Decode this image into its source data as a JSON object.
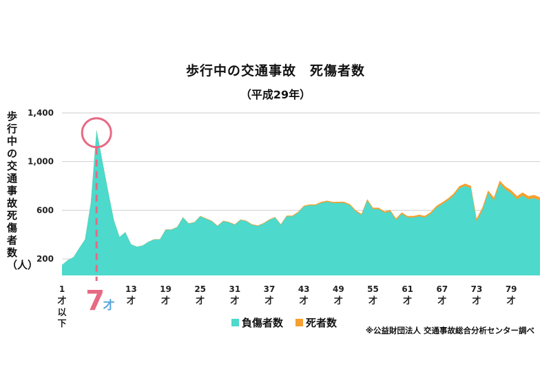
{
  "title": "歩行中の交通事故　死傷者数",
  "subtitle": "（平成29年）",
  "source": "※公益財団法人 交通事故総合分析センター調べ",
  "chart_data": {
    "type": "area",
    "ylabel": "歩行中の交通事故死傷者数（人）",
    "ylim": [
      0,
      1400
    ],
    "y_ticks": [
      200,
      600,
      1000,
      1400
    ],
    "y_tick_labels": [
      "200",
      "600",
      "1,000",
      "1,400"
    ],
    "x_ticks": [
      {
        "age": 1,
        "label": "1",
        "suffix": "才",
        "extra": "以下"
      },
      {
        "age": 13,
        "label": "13",
        "suffix": "才"
      },
      {
        "age": 19,
        "label": "19",
        "suffix": "才"
      },
      {
        "age": 25,
        "label": "25",
        "suffix": "才"
      },
      {
        "age": 31,
        "label": "31",
        "suffix": "才"
      },
      {
        "age": 37,
        "label": "37",
        "suffix": "才"
      },
      {
        "age": 43,
        "label": "43",
        "suffix": "才"
      },
      {
        "age": 49,
        "label": "49",
        "suffix": "才"
      },
      {
        "age": 55,
        "label": "55",
        "suffix": "才"
      },
      {
        "age": 61,
        "label": "61",
        "suffix": "才"
      },
      {
        "age": 67,
        "label": "67",
        "suffix": "才"
      },
      {
        "age": 73,
        "label": "73",
        "suffix": "才"
      },
      {
        "age": 79,
        "label": "79",
        "suffix": "才"
      }
    ],
    "highlight": {
      "age": 7,
      "number": "7",
      "suffix": "才"
    },
    "legend": [
      {
        "name": "負傷者数",
        "color": "#4dd9cc"
      },
      {
        "name": "死者数",
        "color": "#f5a030"
      }
    ],
    "x_ages": [
      1,
      2,
      3,
      4,
      5,
      6,
      7,
      8,
      9,
      10,
      11,
      12,
      13,
      14,
      15,
      16,
      17,
      18,
      19,
      20,
      21,
      22,
      23,
      24,
      25,
      26,
      27,
      28,
      29,
      30,
      31,
      32,
      33,
      34,
      35,
      36,
      37,
      38,
      39,
      40,
      41,
      42,
      43,
      44,
      45,
      46,
      47,
      48,
      49,
      50,
      51,
      52,
      53,
      54,
      55,
      56,
      57,
      58,
      59,
      60,
      61,
      62,
      63,
      64,
      65,
      66,
      67,
      68,
      69,
      70,
      71,
      72,
      73,
      74,
      75,
      76,
      77,
      78,
      79,
      80,
      81,
      82,
      83,
      84
    ],
    "series": [
      {
        "name": "負傷者数",
        "values": [
          150,
          190,
          215,
          290,
          360,
          660,
          1260,
          1010,
          760,
          520,
          380,
          420,
          320,
          300,
          310,
          340,
          360,
          360,
          440,
          440,
          460,
          540,
          490,
          500,
          550,
          530,
          510,
          470,
          510,
          500,
          480,
          520,
          510,
          480,
          470,
          490,
          520,
          540,
          480,
          550,
          550,
          580,
          630,
          640,
          640,
          660,
          670,
          660,
          660,
          660,
          640,
          590,
          560,
          680,
          610,
          610,
          580,
          590,
          520,
          570,
          540,
          540,
          550,
          540,
          570,
          620,
          650,
          680,
          720,
          780,
          800,
          780,
          510,
          600,
          740,
          680,
          820,
          770,
          740,
          690,
          720,
          690,
          700,
          680
        ]
      },
      {
        "name": "死者数",
        "values": [
          0,
          0,
          0,
          0,
          1,
          1,
          2,
          2,
          2,
          1,
          1,
          1,
          1,
          1,
          1,
          1,
          2,
          2,
          3,
          3,
          3,
          3,
          3,
          3,
          4,
          4,
          4,
          4,
          4,
          4,
          4,
          4,
          4,
          5,
          5,
          5,
          5,
          5,
          5,
          6,
          6,
          7,
          7,
          8,
          8,
          9,
          9,
          9,
          10,
          10,
          10,
          10,
          10,
          11,
          11,
          11,
          11,
          12,
          12,
          12,
          12,
          13,
          13,
          14,
          14,
          15,
          15,
          16,
          17,
          18,
          19,
          20,
          21,
          22,
          23,
          24,
          24,
          25,
          25,
          26,
          26,
          26,
          26,
          26
        ]
      }
    ]
  }
}
